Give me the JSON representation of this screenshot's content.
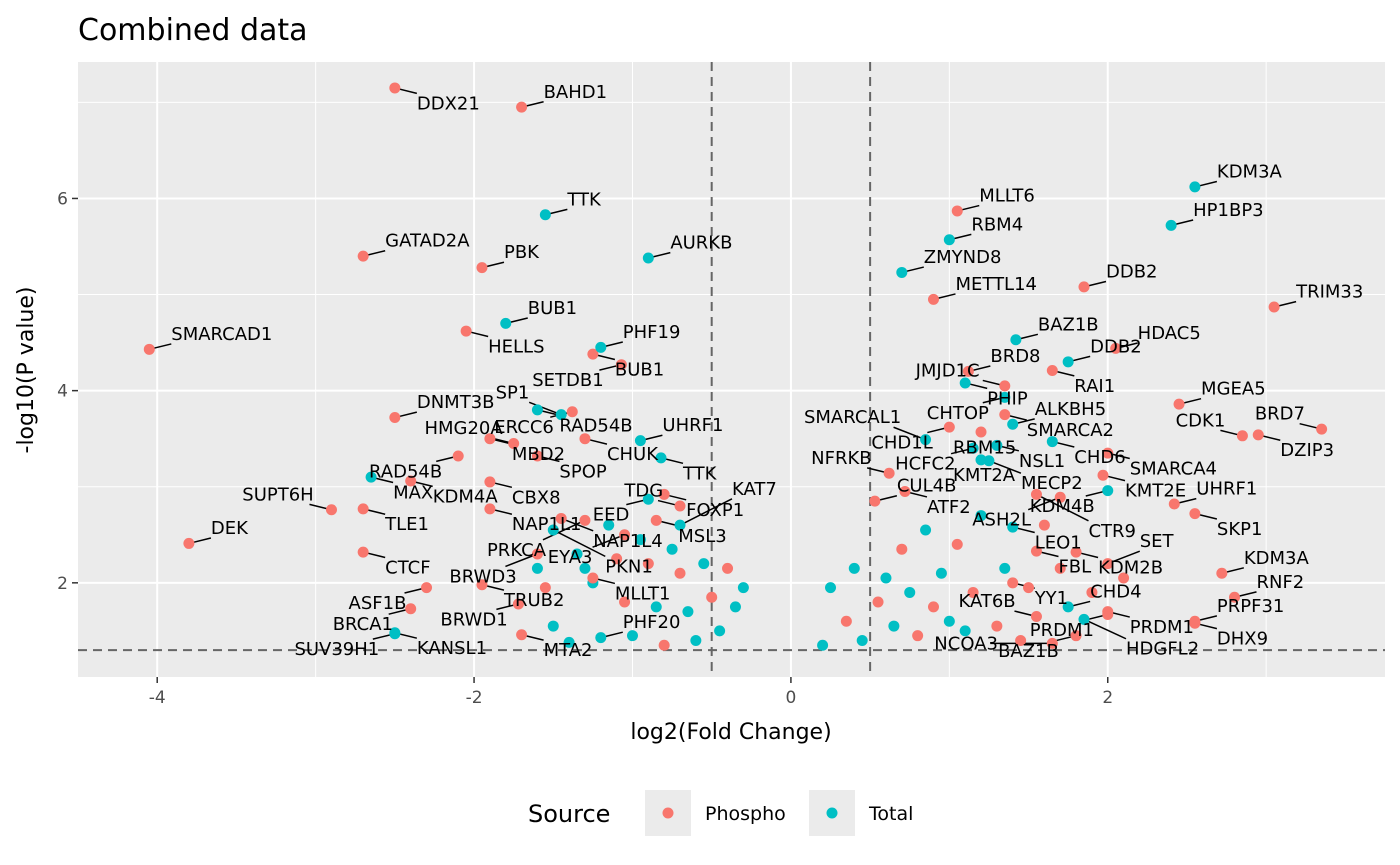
{
  "chart_data": {
    "type": "scatter",
    "title": "Combined data",
    "xlabel": "log2(Fold Change)",
    "ylabel": "-log10(P value)",
    "xlim": [
      -4.5,
      3.75
    ],
    "ylim": [
      1.02,
      7.42
    ],
    "x_ticks": [
      -4,
      -2,
      0,
      2
    ],
    "y_ticks": [
      2,
      4,
      6
    ],
    "threshold_x": [
      -0.5,
      0.5
    ],
    "threshold_y": 1.3,
    "grid": true,
    "legend": {
      "title": "Source",
      "position": "bottom",
      "entries": [
        {
          "name": "Phospho",
          "color": "#F8766D"
        },
        {
          "name": "Total",
          "color": "#00BFC4"
        }
      ]
    },
    "colors": {
      "Phospho": "#F8766D",
      "Total": "#00BFC4",
      "panel": "#EBEBEB",
      "grid": "#FFFFFF",
      "threshold": "#666666"
    },
    "labeled_points": [
      {
        "label": "DDX21",
        "x": -2.5,
        "y": 7.15,
        "source": "Phospho"
      },
      {
        "label": "BAHD1",
        "x": -1.7,
        "y": 6.95,
        "source": "Phospho"
      },
      {
        "label": "TTK",
        "x": -1.55,
        "y": 5.83,
        "source": "Total"
      },
      {
        "label": "GATAD2A",
        "x": -2.7,
        "y": 5.4,
        "source": "Phospho"
      },
      {
        "label": "PBK",
        "x": -1.95,
        "y": 5.28,
        "source": "Phospho"
      },
      {
        "label": "AURKB",
        "x": -0.9,
        "y": 5.38,
        "source": "Total"
      },
      {
        "label": "BUB1",
        "x": -1.8,
        "y": 4.7,
        "source": "Total"
      },
      {
        "label": "HELLS",
        "x": -2.05,
        "y": 4.62,
        "source": "Phospho"
      },
      {
        "label": "SMARCAD1",
        "x": -4.05,
        "y": 4.43,
        "source": "Phospho"
      },
      {
        "label": "BUB1",
        "x": -1.25,
        "y": 4.38,
        "source": "Phospho"
      },
      {
        "label": "PHF19",
        "x": -1.2,
        "y": 4.45,
        "source": "Total"
      },
      {
        "label": "SETDB1",
        "x": -1.07,
        "y": 4.27,
        "source": "Phospho"
      },
      {
        "label": "DNMT3B",
        "x": -2.5,
        "y": 3.72,
        "source": "Phospho"
      },
      {
        "label": "MBD2",
        "x": -1.9,
        "y": 3.5,
        "source": "Phospho"
      },
      {
        "label": "RAD54B",
        "x": -1.6,
        "y": 3.8,
        "source": "Total"
      },
      {
        "label": "SP1",
        "x": -1.45,
        "y": 3.75,
        "source": "Total"
      },
      {
        "label": "ERCC6",
        "x": -1.38,
        "y": 3.78,
        "source": "Phospho"
      },
      {
        "label": "CHUK",
        "x": -1.3,
        "y": 3.5,
        "source": "Phospho"
      },
      {
        "label": "UHRF1",
        "x": -0.95,
        "y": 3.48,
        "source": "Total"
      },
      {
        "label": "HMG20A",
        "x": -1.75,
        "y": 3.45,
        "source": "Phospho"
      },
      {
        "label": "SPOP",
        "x": -1.6,
        "y": 3.32,
        "source": "Phospho"
      },
      {
        "label": "RAD54B",
        "x": -2.1,
        "y": 3.32,
        "source": "Phospho"
      },
      {
        "label": "TTK",
        "x": -0.82,
        "y": 3.3,
        "source": "Total"
      },
      {
        "label": "MAX",
        "x": -2.65,
        "y": 3.1,
        "source": "Total"
      },
      {
        "label": "KDM4A",
        "x": -2.4,
        "y": 3.06,
        "source": "Phospho"
      },
      {
        "label": "CBX8",
        "x": -1.9,
        "y": 3.05,
        "source": "Phospho"
      },
      {
        "label": "FOXP1",
        "x": -0.8,
        "y": 2.92,
        "source": "Phospho"
      },
      {
        "label": "EED",
        "x": -0.9,
        "y": 2.87,
        "source": "Total"
      },
      {
        "label": "TDG",
        "x": -0.7,
        "y": 2.8,
        "source": "Phospho"
      },
      {
        "label": "SUPT6H",
        "x": -2.9,
        "y": 2.76,
        "source": "Phospho"
      },
      {
        "label": "TLE1",
        "x": -2.7,
        "y": 2.77,
        "source": "Phospho"
      },
      {
        "label": "NAP1L1",
        "x": -1.9,
        "y": 2.77,
        "source": "Phospho"
      },
      {
        "label": "NAP1L4",
        "x": -1.45,
        "y": 2.67,
        "source": "Phospho"
      },
      {
        "label": "MSL3",
        "x": -0.85,
        "y": 2.65,
        "source": "Phospho"
      },
      {
        "label": "KAT7",
        "x": -0.7,
        "y": 2.6,
        "source": "Total"
      },
      {
        "label": "DEK",
        "x": -3.8,
        "y": 2.41,
        "source": "Phospho"
      },
      {
        "label": "CTCF",
        "x": -2.7,
        "y": 2.32,
        "source": "Phospho"
      },
      {
        "label": "TRUB2",
        "x": -1.95,
        "y": 1.98,
        "source": "Phospho"
      },
      {
        "label": "ASF1B",
        "x": -2.3,
        "y": 1.95,
        "source": "Phospho"
      },
      {
        "label": "BRCA1",
        "x": -2.4,
        "y": 1.73,
        "source": "Phospho"
      },
      {
        "label": "KANSL1",
        "x": -2.5,
        "y": 1.48,
        "source": "Total"
      },
      {
        "label": "MLLT6",
        "x": 1.05,
        "y": 5.87,
        "source": "Phospho"
      },
      {
        "label": "KDM3A",
        "x": 2.55,
        "y": 6.12,
        "source": "Total"
      },
      {
        "label": "HP1BP3",
        "x": 2.4,
        "y": 5.72,
        "source": "Total"
      },
      {
        "label": "RBM4",
        "x": 1.0,
        "y": 5.57,
        "source": "Total"
      },
      {
        "label": "ZMYND8",
        "x": 0.7,
        "y": 5.23,
        "source": "Total"
      },
      {
        "label": "DDB2",
        "x": 1.85,
        "y": 5.08,
        "source": "Phospho"
      },
      {
        "label": "METTL14",
        "x": 0.9,
        "y": 4.95,
        "source": "Phospho"
      },
      {
        "label": "TRIM33",
        "x": 3.05,
        "y": 4.87,
        "source": "Phospho"
      },
      {
        "label": "BAZ1B",
        "x": 1.42,
        "y": 4.53,
        "source": "Total"
      },
      {
        "label": "HDAC5",
        "x": 2.05,
        "y": 4.44,
        "source": "Phospho"
      },
      {
        "label": "PHIP",
        "x": 1.1,
        "y": 4.08,
        "source": "Total"
      },
      {
        "label": "DDB2",
        "x": 1.75,
        "y": 4.3,
        "source": "Total"
      },
      {
        "label": "RAI1",
        "x": 1.65,
        "y": 4.21,
        "source": "Phospho"
      },
      {
        "label": "BRD8",
        "x": 1.12,
        "y": 4.2,
        "source": "Phospho"
      },
      {
        "label": "JMJD1C",
        "x": 1.35,
        "y": 4.05,
        "source": "Phospho"
      },
      {
        "label": "CHTOP",
        "x": 1.35,
        "y": 3.93,
        "source": "Total"
      },
      {
        "label": "SMARCA2",
        "x": 1.35,
        "y": 3.75,
        "source": "Phospho"
      },
      {
        "label": "MGEA5",
        "x": 2.45,
        "y": 3.86,
        "source": "Phospho"
      },
      {
        "label": "ALKBH5",
        "x": 1.4,
        "y": 3.65,
        "source": "Total"
      },
      {
        "label": "CHD1L",
        "x": 1.0,
        "y": 3.62,
        "source": "Phospho"
      },
      {
        "label": "RBM15",
        "x": 1.2,
        "y": 3.57,
        "source": "Phospho"
      },
      {
        "label": "DZIP3",
        "x": 2.95,
        "y": 3.54,
        "source": "Phospho"
      },
      {
        "label": "BRD7",
        "x": 3.35,
        "y": 3.6,
        "source": "Phospho"
      },
      {
        "label": "CHD6",
        "x": 1.65,
        "y": 3.47,
        "source": "Total"
      },
      {
        "label": "SMARCAL1",
        "x": 0.85,
        "y": 3.49,
        "source": "Total"
      },
      {
        "label": "NSL1",
        "x": 1.3,
        "y": 3.43,
        "source": "Total"
      },
      {
        "label": "HCFC2",
        "x": 1.15,
        "y": 3.4,
        "source": "Total"
      },
      {
        "label": "CDK1",
        "x": 2.85,
        "y": 3.53,
        "source": "Phospho"
      },
      {
        "label": "SMARCA4",
        "x": 2.0,
        "y": 3.35,
        "source": "Phospho"
      },
      {
        "label": "KMT2A",
        "x": 1.2,
        "y": 3.28,
        "source": "Total"
      },
      {
        "label": "MECP2",
        "x": 1.25,
        "y": 3.27,
        "source": "Total"
      },
      {
        "label": "NFRKB",
        "x": 0.62,
        "y": 3.14,
        "source": "Phospho"
      },
      {
        "label": "KMT2E",
        "x": 1.97,
        "y": 3.12,
        "source": "Phospho"
      },
      {
        "label": "ATF2",
        "x": 0.72,
        "y": 2.95,
        "source": "Phospho"
      },
      {
        "label": "CTR9",
        "x": 1.55,
        "y": 2.92,
        "source": "Phospho"
      },
      {
        "label": "KDM4B",
        "x": 2.0,
        "y": 2.96,
        "source": "Total"
      },
      {
        "label": "UHRF1",
        "x": 2.42,
        "y": 2.82,
        "source": "Phospho"
      },
      {
        "label": "ASH2L",
        "x": 1.7,
        "y": 2.89,
        "source": "Phospho"
      },
      {
        "label": "SKP1",
        "x": 2.55,
        "y": 2.72,
        "source": "Phospho"
      },
      {
        "label": "CUL4B",
        "x": 0.53,
        "y": 2.85,
        "source": "Phospho"
      },
      {
        "label": "LEO1",
        "x": 1.4,
        "y": 2.58,
        "source": "Total"
      },
      {
        "label": "KDM2B",
        "x": 1.8,
        "y": 2.32,
        "source": "Phospho"
      },
      {
        "label": "FBL",
        "x": 1.55,
        "y": 2.33,
        "source": "Phospho"
      },
      {
        "label": "SET",
        "x": 2.0,
        "y": 2.2,
        "source": "Phospho"
      },
      {
        "label": "KDM3A",
        "x": 2.72,
        "y": 2.1,
        "source": "Phospho"
      },
      {
        "label": "YY1",
        "x": 1.4,
        "y": 2.0,
        "source": "Phospho"
      },
      {
        "label": "CHD4",
        "x": 1.75,
        "y": 1.75,
        "source": "Total"
      },
      {
        "label": "RNF2",
        "x": 2.8,
        "y": 1.85,
        "source": "Phospho"
      },
      {
        "label": "HDGFL2",
        "x": 1.85,
        "y": 1.62,
        "source": "Total"
      },
      {
        "label": "DHX9",
        "x": 2.55,
        "y": 1.58,
        "source": "Phospho"
      },
      {
        "label": "KAT6B",
        "x": 1.55,
        "y": 1.65,
        "source": "Phospho"
      },
      {
        "label": "PRDM1",
        "x": 2.0,
        "y": 1.7,
        "source": "Phospho"
      },
      {
        "label": "PRDM1",
        "x": 2.0,
        "y": 1.67,
        "source": "Phospho"
      },
      {
        "label": "PRPF31",
        "x": 2.55,
        "y": 1.6,
        "source": "Phospho"
      },
      {
        "label": "NCOA3",
        "x": 1.65,
        "y": 1.37,
        "source": "Phospho"
      },
      {
        "label": "BAZ1B",
        "x": 1.8,
        "y": 1.45,
        "source": "Phospho"
      },
      {
        "label": "PKN1",
        "x": -1.5,
        "y": 2.55,
        "source": "Total"
      },
      {
        "label": "PRKCA",
        "x": -1.3,
        "y": 2.65,
        "source": "Phospho"
      },
      {
        "label": "EYA3",
        "x": -1.05,
        "y": 2.5,
        "source": "Phospho"
      },
      {
        "label": "BRWD3",
        "x": -1.6,
        "y": 2.3,
        "source": "Phospho"
      },
      {
        "label": "MLLT1",
        "x": -1.25,
        "y": 2.05,
        "source": "Phospho"
      },
      {
        "label": "BRWD1",
        "x": -1.72,
        "y": 1.78,
        "source": "Phospho"
      },
      {
        "label": "SUV39H1",
        "x": -2.5,
        "y": 1.47,
        "source": "Total"
      },
      {
        "label": "MTA2",
        "x": -1.7,
        "y": 1.46,
        "source": "Phospho"
      },
      {
        "label": "PHF20",
        "x": -1.2,
        "y": 1.43,
        "source": "Total"
      }
    ],
    "unlabeled_points": [
      {
        "x": -1.6,
        "y": 2.15,
        "source": "Total"
      },
      {
        "x": -1.55,
        "y": 1.95,
        "source": "Phospho"
      },
      {
        "x": -1.5,
        "y": 1.55,
        "source": "Total"
      },
      {
        "x": -1.4,
        "y": 1.38,
        "source": "Total"
      },
      {
        "x": -1.35,
        "y": 2.3,
        "source": "Total"
      },
      {
        "x": -1.3,
        "y": 2.15,
        "source": "Total"
      },
      {
        "x": -1.25,
        "y": 2.0,
        "source": "Total"
      },
      {
        "x": -1.15,
        "y": 2.6,
        "source": "Total"
      },
      {
        "x": -1.1,
        "y": 2.25,
        "source": "Phospho"
      },
      {
        "x": -1.05,
        "y": 1.8,
        "source": "Phospho"
      },
      {
        "x": -1.0,
        "y": 1.45,
        "source": "Total"
      },
      {
        "x": -0.95,
        "y": 2.45,
        "source": "Total"
      },
      {
        "x": -0.9,
        "y": 2.2,
        "source": "Phospho"
      },
      {
        "x": -0.85,
        "y": 1.75,
        "source": "Total"
      },
      {
        "x": -0.8,
        "y": 1.35,
        "source": "Phospho"
      },
      {
        "x": -0.75,
        "y": 2.35,
        "source": "Total"
      },
      {
        "x": -0.7,
        "y": 2.1,
        "source": "Phospho"
      },
      {
        "x": -0.65,
        "y": 1.7,
        "source": "Total"
      },
      {
        "x": -0.6,
        "y": 1.4,
        "source": "Total"
      },
      {
        "x": -0.55,
        "y": 2.2,
        "source": "Total"
      },
      {
        "x": -0.5,
        "y": 1.85,
        "source": "Phospho"
      },
      {
        "x": -0.45,
        "y": 1.5,
        "source": "Total"
      },
      {
        "x": -0.4,
        "y": 2.15,
        "source": "Phospho"
      },
      {
        "x": -0.35,
        "y": 1.75,
        "source": "Total"
      },
      {
        "x": -0.3,
        "y": 1.95,
        "source": "Total"
      },
      {
        "x": 0.2,
        "y": 1.35,
        "source": "Total"
      },
      {
        "x": 0.25,
        "y": 1.95,
        "source": "Total"
      },
      {
        "x": 0.35,
        "y": 1.6,
        "source": "Phospho"
      },
      {
        "x": 0.4,
        "y": 2.15,
        "source": "Total"
      },
      {
        "x": 0.45,
        "y": 1.4,
        "source": "Total"
      },
      {
        "x": 0.55,
        "y": 1.8,
        "source": "Phospho"
      },
      {
        "x": 0.6,
        "y": 2.05,
        "source": "Total"
      },
      {
        "x": 0.65,
        "y": 1.55,
        "source": "Total"
      },
      {
        "x": 0.7,
        "y": 2.35,
        "source": "Phospho"
      },
      {
        "x": 0.75,
        "y": 1.9,
        "source": "Total"
      },
      {
        "x": 0.8,
        "y": 1.45,
        "source": "Phospho"
      },
      {
        "x": 0.85,
        "y": 2.55,
        "source": "Total"
      },
      {
        "x": 0.9,
        "y": 1.75,
        "source": "Phospho"
      },
      {
        "x": 0.95,
        "y": 2.1,
        "source": "Total"
      },
      {
        "x": 1.0,
        "y": 1.6,
        "source": "Total"
      },
      {
        "x": 1.05,
        "y": 2.4,
        "source": "Phospho"
      },
      {
        "x": 1.1,
        "y": 1.5,
        "source": "Total"
      },
      {
        "x": 1.15,
        "y": 1.9,
        "source": "Phospho"
      },
      {
        "x": 1.2,
        "y": 2.7,
        "source": "Total"
      },
      {
        "x": 1.3,
        "y": 1.55,
        "source": "Phospho"
      },
      {
        "x": 1.35,
        "y": 2.15,
        "source": "Total"
      },
      {
        "x": 1.45,
        "y": 1.4,
        "source": "Phospho"
      },
      {
        "x": 1.5,
        "y": 1.95,
        "source": "Phospho"
      },
      {
        "x": 1.6,
        "y": 2.6,
        "source": "Phospho"
      },
      {
        "x": 1.7,
        "y": 2.15,
        "source": "Phospho"
      },
      {
        "x": 1.9,
        "y": 1.9,
        "source": "Phospho"
      },
      {
        "x": 2.1,
        "y": 2.05,
        "source": "Phospho"
      }
    ]
  }
}
